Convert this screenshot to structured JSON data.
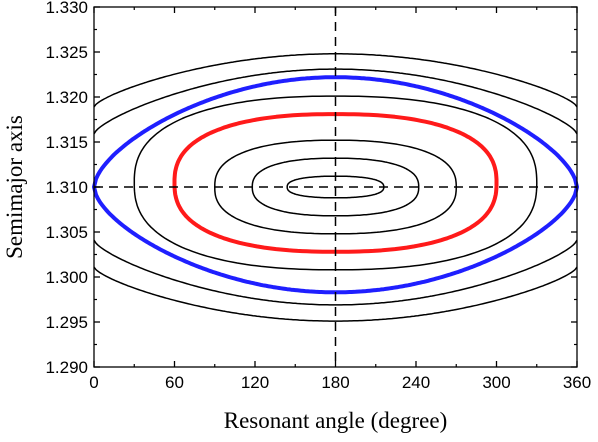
{
  "chart_data": {
    "type": "line",
    "xlabel": "Resonant angle (degree)",
    "ylabel": "Semimajor axis",
    "xlim": [
      0,
      360
    ],
    "ylim": [
      1.29,
      1.33
    ],
    "xticks": [
      0,
      60,
      120,
      180,
      240,
      300,
      360
    ],
    "xtick_labels": [
      "0",
      "60",
      "120",
      "180",
      "240",
      "300",
      "360"
    ],
    "yticks": [
      1.29,
      1.295,
      1.3,
      1.305,
      1.31,
      1.315,
      1.32,
      1.325,
      1.33
    ],
    "ytick_labels": [
      "1.290",
      "1.295",
      "1.300",
      "1.305",
      "1.310",
      "1.315",
      "1.320",
      "1.325",
      "1.330"
    ],
    "grid": false,
    "reference_lines": {
      "x": 180,
      "y": 1.31,
      "style": "dashed"
    },
    "colors": {
      "black": "#000000",
      "blue": "#1f1fff",
      "red": "#ff1a1a"
    },
    "series": [
      {
        "kind": "closed",
        "color": "black",
        "width": 1.5,
        "x_range": [
          144,
          216
        ],
        "y_range": [
          1.3088,
          1.3112
        ]
      },
      {
        "kind": "closed",
        "color": "black",
        "width": 1.5,
        "x_range": [
          118,
          242
        ],
        "y_range": [
          1.3068,
          1.3132
        ]
      },
      {
        "kind": "closed",
        "color": "black",
        "width": 1.5,
        "x_range": [
          90,
          270
        ],
        "y_range": [
          1.3048,
          1.3152
        ]
      },
      {
        "kind": "closed",
        "color": "red",
        "width": 4,
        "x_range": [
          60,
          300
        ],
        "y_range": [
          1.3028,
          1.3181
        ]
      },
      {
        "kind": "closed",
        "color": "black",
        "width": 1.5,
        "x_range": [
          30,
          330
        ],
        "y_range": [
          1.3008,
          1.3201
        ]
      },
      {
        "kind": "separatrix",
        "color": "blue",
        "width": 4,
        "x_range": [
          0,
          360
        ],
        "y_range": [
          1.2983,
          1.3222
        ],
        "center": 1.31
      },
      {
        "kind": "open",
        "color": "black",
        "width": 1.5,
        "y_edge": 1.3159,
        "y_mid": 1.3231
      },
      {
        "kind": "open",
        "color": "black",
        "width": 1.5,
        "y_edge": 1.3189,
        "y_mid": 1.3248
      },
      {
        "kind": "open",
        "color": "black",
        "width": 1.5,
        "y_edge": 1.3041,
        "y_mid": 1.2969
      },
      {
        "kind": "open",
        "color": "black",
        "width": 1.5,
        "y_edge": 1.3011,
        "y_mid": 1.2951
      }
    ]
  }
}
